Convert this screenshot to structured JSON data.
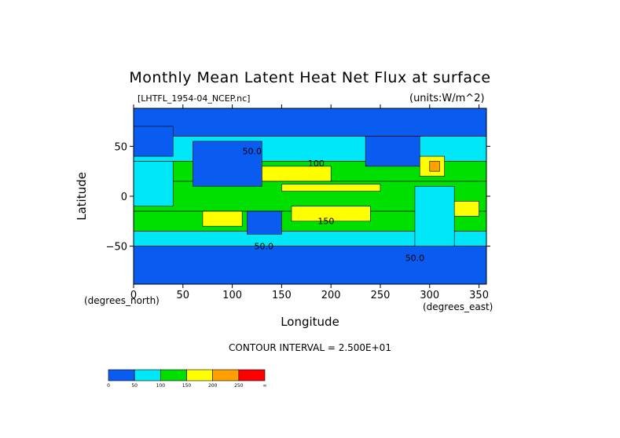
{
  "chart_data": {
    "type": "heatmap",
    "title": "Monthly Mean Latent Heat Net Flux at surface",
    "file_label": "[LHTFL_1954-04_NCEP.nc]",
    "units_label": "(units:W/m^2)",
    "xlabel": "Longitude",
    "ylabel": "Latitude",
    "x_unit_label": "(degrees_east)",
    "y_unit_label": "(degrees_north)",
    "xlim": [
      0,
      357.5
    ],
    "ylim": [
      -88,
      88
    ],
    "x_ticks": [
      0,
      50,
      100,
      150,
      200,
      250,
      300,
      350
    ],
    "y_ticks": [
      50,
      0,
      -50
    ],
    "contour_interval_text": "CONTOUR INTERVAL = 2.500E+01",
    "contour_labels": [
      {
        "text": "50.0",
        "x": 120,
        "y": 42
      },
      {
        "text": "100",
        "x": 185,
        "y": 30
      },
      {
        "text": "150",
        "x": 195,
        "y": -28
      },
      {
        "text": "50.0",
        "x": 132,
        "y": -53
      },
      {
        "text": "50.0",
        "x": 285,
        "y": -65
      }
    ],
    "colorbar": {
      "levels": [
        "0",
        "50",
        "100",
        "150",
        "200",
        "250",
        "∞"
      ],
      "colors": [
        "#0a5cf0",
        "#00e8f8",
        "#00e000",
        "#ffff00",
        "#ffa000",
        "#ff0000"
      ]
    },
    "zones": [
      {
        "latmin": 60,
        "latmax": 88,
        "lonmin": 0,
        "lonmax": 357.5,
        "level": 0
      },
      {
        "latmin": 35,
        "latmax": 60,
        "lonmin": 0,
        "lonmax": 357.5,
        "level": 1
      },
      {
        "latmin": 15,
        "latmax": 35,
        "lonmin": 0,
        "lonmax": 357.5,
        "level": 2
      },
      {
        "latmin": -15,
        "latmax": 15,
        "lonmin": 0,
        "lonmax": 357.5,
        "level": 2
      },
      {
        "latmin": -35,
        "latmax": -15,
        "lonmin": 0,
        "lonmax": 357.5,
        "level": 2
      },
      {
        "latmin": -50,
        "latmax": -35,
        "lonmin": 0,
        "lonmax": 357.5,
        "level": 1
      },
      {
        "latmin": -88,
        "latmax": -50,
        "lonmin": 0,
        "lonmax": 357.5,
        "level": 0
      },
      {
        "latmin": 15,
        "latmax": 30,
        "lonmin": 130,
        "lonmax": 200,
        "level": 3
      },
      {
        "latmin": 5,
        "latmax": 12,
        "lonmin": 150,
        "lonmax": 250,
        "level": 3
      },
      {
        "latmin": -30,
        "latmax": -15,
        "lonmin": 70,
        "lonmax": 110,
        "level": 3
      },
      {
        "latmin": -25,
        "latmax": -10,
        "lonmin": 160,
        "lonmax": 240,
        "level": 3
      },
      {
        "latmin": 20,
        "latmax": 40,
        "lonmin": 290,
        "lonmax": 315,
        "level": 3
      },
      {
        "latmin": 25,
        "latmax": 35,
        "lonmin": 300,
        "lonmax": 310,
        "level": 4
      },
      {
        "latmin": -20,
        "latmax": -5,
        "lonmin": 325,
        "lonmax": 350,
        "level": 3
      },
      {
        "latmin": 40,
        "latmax": 70,
        "lonmin": 0,
        "lonmax": 40,
        "level": 0
      },
      {
        "latmin": 10,
        "latmax": 55,
        "lonmin": 60,
        "lonmax": 130,
        "level": 0
      },
      {
        "latmin": -10,
        "latmax": 35,
        "lonmin": 0,
        "lonmax": 40,
        "level": 1
      },
      {
        "latmin": 30,
        "latmax": 60,
        "lonmin": 235,
        "lonmax": 290,
        "level": 0
      },
      {
        "latmin": -50,
        "latmax": 10,
        "lonmin": 285,
        "lonmax": 325,
        "level": 1
      },
      {
        "latmin": -38,
        "latmax": -15,
        "lonmin": 115,
        "lonmax": 150,
        "level": 0
      }
    ]
  }
}
